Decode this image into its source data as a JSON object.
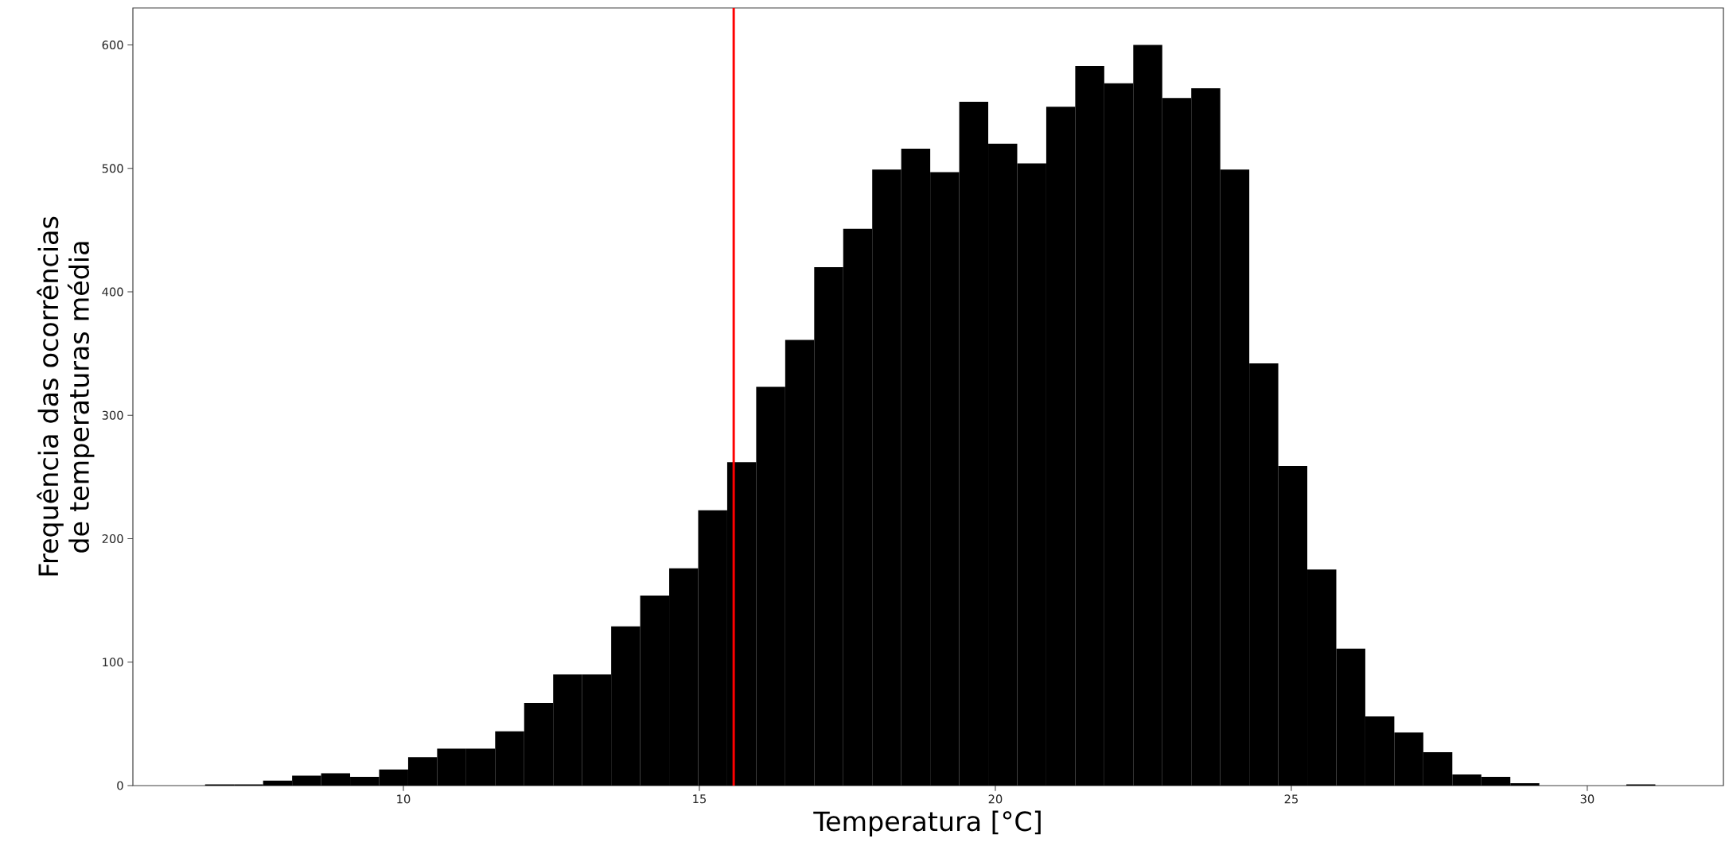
{
  "chart_data": {
    "type": "histogram",
    "xlabel": "Temperatura [°C]",
    "ylabel": "Frequência das ocorrências de temperaturas média",
    "bins": [
      6.65,
      7.14,
      7.63,
      8.12,
      8.61,
      9.1,
      9.59,
      10.08,
      10.57,
      11.06,
      11.55,
      12.04,
      12.53,
      13.02,
      13.51,
      14.0,
      14.49,
      14.98,
      15.47,
      15.96,
      16.45,
      16.94,
      17.43,
      17.92,
      18.41,
      18.9,
      19.39,
      19.88,
      20.37,
      20.86,
      21.35,
      21.84,
      22.33,
      22.82,
      23.31,
      23.8,
      24.29,
      24.78,
      25.27,
      25.76,
      26.25,
      26.74,
      27.23,
      27.72,
      28.21,
      28.7,
      29.19,
      29.68,
      30.17,
      30.66,
      31.15
    ],
    "values": [
      1,
      1,
      4,
      8,
      10,
      7,
      13,
      23,
      30,
      30,
      44,
      67,
      90,
      90,
      129,
      154,
      176,
      223,
      262,
      323,
      361,
      420,
      451,
      499,
      516,
      497,
      554,
      520,
      504,
      550,
      583,
      569,
      600,
      557,
      565,
      499,
      342,
      259,
      175,
      111,
      56,
      43,
      27,
      9,
      7,
      2,
      0,
      0,
      0,
      1
    ],
    "color": "#000000",
    "xlim": [
      5.43,
      32.3
    ],
    "xticks": [
      10,
      15,
      20,
      25,
      30
    ],
    "ylim": [
      0,
      630
    ],
    "yticks": [
      0,
      100,
      200,
      300,
      400,
      500,
      600
    ],
    "ref_lines": [
      {
        "axis": "x",
        "value": 15.58,
        "color": "#ff0000"
      }
    ]
  }
}
